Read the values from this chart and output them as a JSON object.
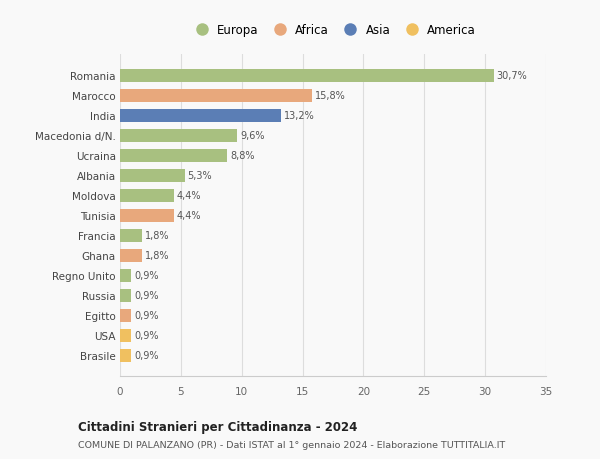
{
  "countries": [
    "Romania",
    "Marocco",
    "India",
    "Macedonia d/N.",
    "Ucraina",
    "Albania",
    "Moldova",
    "Tunisia",
    "Francia",
    "Ghana",
    "Regno Unito",
    "Russia",
    "Egitto",
    "USA",
    "Brasile"
  ],
  "values": [
    30.7,
    15.8,
    13.2,
    9.6,
    8.8,
    5.3,
    4.4,
    4.4,
    1.8,
    1.8,
    0.9,
    0.9,
    0.9,
    0.9,
    0.9
  ],
  "labels": [
    "30,7%",
    "15,8%",
    "13,2%",
    "9,6%",
    "8,8%",
    "5,3%",
    "4,4%",
    "4,4%",
    "1,8%",
    "1,8%",
    "0,9%",
    "0,9%",
    "0,9%",
    "0,9%",
    "0,9%"
  ],
  "colors": [
    "#a8c080",
    "#e8a87c",
    "#5b7eb5",
    "#a8c080",
    "#a8c080",
    "#a8c080",
    "#a8c080",
    "#e8a87c",
    "#a8c080",
    "#e8a87c",
    "#a8c080",
    "#a8c080",
    "#e8a87c",
    "#f0c060",
    "#f0c060"
  ],
  "legend_labels": [
    "Europa",
    "Africa",
    "Asia",
    "America"
  ],
  "legend_colors": [
    "#a8c080",
    "#e8a87c",
    "#5b7eb5",
    "#f0c060"
  ],
  "title1": "Cittadini Stranieri per Cittadinanza - 2024",
  "title2": "COMUNE DI PALANZANO (PR) - Dati ISTAT al 1° gennaio 2024 - Elaborazione TUTTITALIA.IT",
  "xlim": [
    0,
    35
  ],
  "xticks": [
    0,
    5,
    10,
    15,
    20,
    25,
    30,
    35
  ],
  "background_color": "#f9f9f9",
  "grid_color": "#dddddd",
  "bar_height": 0.65
}
